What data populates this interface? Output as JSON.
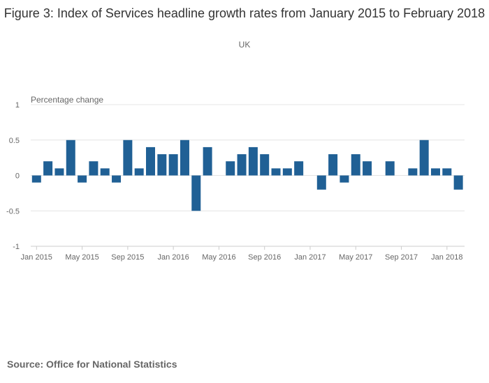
{
  "chart_data": {
    "type": "bar",
    "title": "Figure 3: Index of Services headline growth rates from January 2015 to February 2018",
    "subtitle": "UK",
    "ylabel": "Percentage change",
    "xlabel": "",
    "ylim": [
      -1,
      1
    ],
    "yticks": [
      "1",
      "0.5",
      "0",
      "-0.5",
      "-1"
    ],
    "ytick_values": [
      1,
      0.5,
      0,
      -0.5,
      -1
    ],
    "xtick_labels": [
      "Jan 2015",
      "May 2015",
      "Sep 2015",
      "Jan 2016",
      "May 2016",
      "Sep 2016",
      "Jan 2017",
      "May 2017",
      "Sep 2017",
      "Jan 2018"
    ],
    "grid": true,
    "bar_color": "#206095",
    "categories": [
      "Jan 2015",
      "Feb 2015",
      "Mar 2015",
      "Apr 2015",
      "May 2015",
      "Jun 2015",
      "Jul 2015",
      "Aug 2015",
      "Sep 2015",
      "Oct 2015",
      "Nov 2015",
      "Dec 2015",
      "Jan 2016",
      "Feb 2016",
      "Mar 2016",
      "Apr 2016",
      "May 2016",
      "Jun 2016",
      "Jul 2016",
      "Aug 2016",
      "Sep 2016",
      "Oct 2016",
      "Nov 2016",
      "Dec 2016",
      "Jan 2017",
      "Feb 2017",
      "Mar 2017",
      "Apr 2017",
      "May 2017",
      "Jun 2017",
      "Jul 2017",
      "Aug 2017",
      "Sep 2017",
      "Oct 2017",
      "Nov 2017",
      "Dec 2017",
      "Jan 2018",
      "Feb 2018"
    ],
    "values": [
      -0.1,
      0.2,
      0.1,
      0.5,
      -0.1,
      0.2,
      0.1,
      -0.1,
      0.5,
      0.1,
      0.4,
      0.3,
      0.3,
      0.5,
      -0.5,
      0.4,
      0,
      0.2,
      0.3,
      0.4,
      0.3,
      0.1,
      0.1,
      0.2,
      0,
      -0.2,
      0.3,
      -0.1,
      0.3,
      0.2,
      0,
      0.2,
      0,
      0.1,
      0.5,
      0.1,
      0.1,
      -0.2
    ]
  },
  "source": "Source: Office for National Statistics"
}
